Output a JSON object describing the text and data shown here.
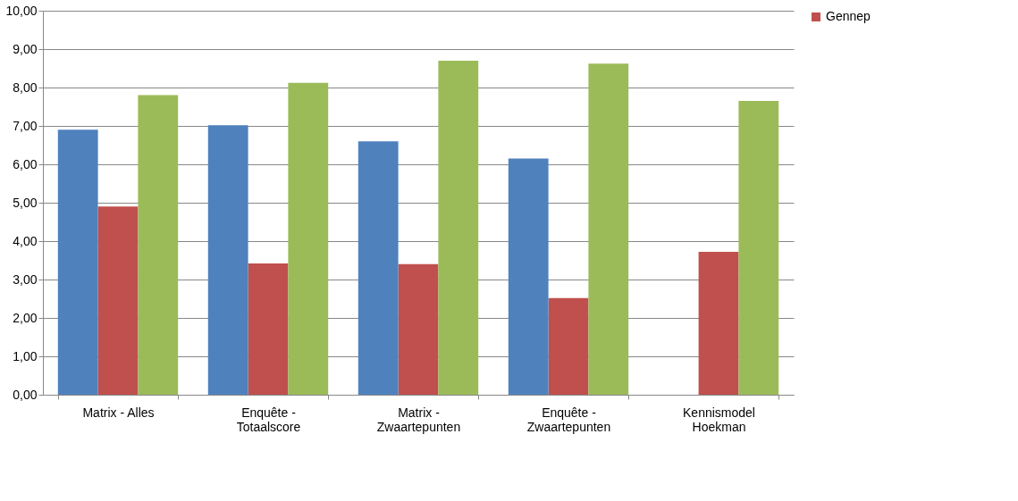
{
  "chart_data": {
    "type": "bar",
    "categories": [
      "Matrix - Alles",
      "Enquête -\nTotaalscore",
      "Matrix -\nZwaartepunten",
      "Enquête -\nZwaartepunten",
      "Kennismodel\nHoekman"
    ],
    "series": [
      {
        "color": "#4f81bd",
        "values": [
          6.9,
          7.02,
          6.6,
          6.15,
          null
        ]
      },
      {
        "name": "Gennep",
        "color": "#c0504d",
        "values": [
          4.9,
          3.42,
          3.4,
          2.52,
          3.72
        ]
      },
      {
        "color": "#9bbb59",
        "values": [
          7.8,
          8.12,
          8.7,
          8.62,
          7.65
        ]
      }
    ],
    "ylim": [
      0,
      10
    ],
    "yticks": [
      {
        "value": 0,
        "label": "0,00"
      },
      {
        "value": 1,
        "label": "1,00"
      },
      {
        "value": 2,
        "label": "2,00"
      },
      {
        "value": 3,
        "label": "3,00"
      },
      {
        "value": 4,
        "label": "4,00"
      },
      {
        "value": 5,
        "label": "5,00"
      },
      {
        "value": 6,
        "label": "6,00"
      },
      {
        "value": 7,
        "label": "7,00"
      },
      {
        "value": 8,
        "label": "8,00"
      },
      {
        "value": 9,
        "label": "9,00"
      },
      {
        "value": 10,
        "label": "10,00"
      }
    ],
    "grid": "y",
    "legend": "right"
  }
}
